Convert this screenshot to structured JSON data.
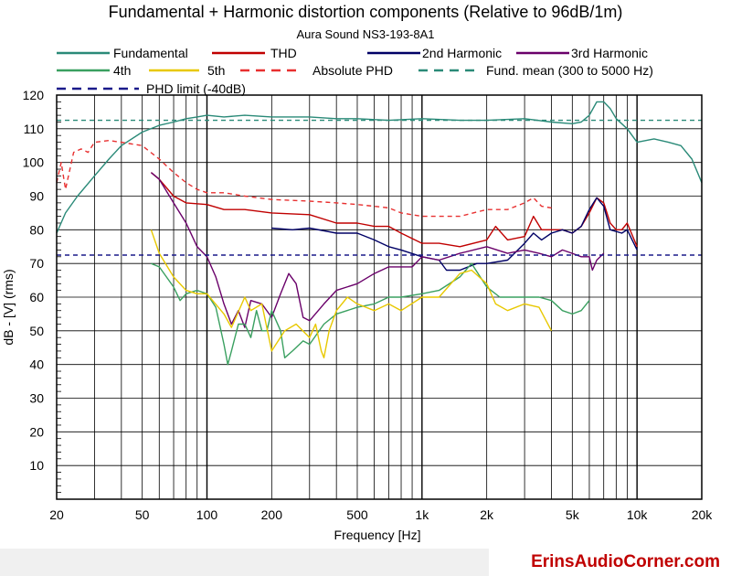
{
  "chart_data": {
    "type": "line",
    "title": "Fundamental + Harmonic distortion components (Relative to 96dB/1m)",
    "subtitle": "Aura Sound NS3-193-8A1",
    "xlabel": "Frequency [Hz]",
    "ylabel": "dB - [V]  (rms)",
    "xscale": "log",
    "xlim": [
      20,
      20000
    ],
    "ylim": [
      0,
      120
    ],
    "xticks": [
      20,
      50,
      100,
      200,
      500,
      1000,
      2000,
      5000,
      10000,
      20000
    ],
    "xtick_labels": [
      "20",
      "50",
      "100",
      "200",
      "500",
      "1k",
      "2k",
      "5k",
      "10k",
      "20k"
    ],
    "yticks": [
      10,
      20,
      30,
      40,
      50,
      60,
      70,
      80,
      90,
      100,
      110,
      120
    ],
    "grid": true,
    "legend_placement": "top",
    "series": [
      {
        "name": "Fundamental",
        "color": "#2a8a78",
        "dash": "solid",
        "points": [
          [
            20,
            79
          ],
          [
            22,
            85
          ],
          [
            25,
            90
          ],
          [
            30,
            96
          ],
          [
            35,
            101
          ],
          [
            40,
            105
          ],
          [
            50,
            109
          ],
          [
            60,
            111
          ],
          [
            70,
            112
          ],
          [
            80,
            113
          ],
          [
            90,
            113.5
          ],
          [
            100,
            114
          ],
          [
            120,
            113.5
          ],
          [
            150,
            114
          ],
          [
            200,
            113.5
          ],
          [
            300,
            113.5
          ],
          [
            400,
            113
          ],
          [
            500,
            113
          ],
          [
            700,
            112.5
          ],
          [
            1000,
            113
          ],
          [
            1500,
            112.5
          ],
          [
            2000,
            112.5
          ],
          [
            3000,
            113
          ],
          [
            4000,
            112
          ],
          [
            5000,
            111.5
          ],
          [
            5500,
            112
          ],
          [
            6000,
            114
          ],
          [
            6500,
            118
          ],
          [
            7000,
            118
          ],
          [
            7500,
            116
          ],
          [
            8000,
            113
          ],
          [
            9000,
            110
          ],
          [
            10000,
            106
          ],
          [
            12000,
            107
          ],
          [
            14000,
            106
          ],
          [
            16000,
            105
          ],
          [
            18000,
            101
          ],
          [
            20000,
            94
          ]
        ]
      },
      {
        "name": "THD",
        "color": "#c00000",
        "dash": "solid",
        "points": [
          [
            55,
            97
          ],
          [
            60,
            95
          ],
          [
            70,
            90
          ],
          [
            80,
            88
          ],
          [
            100,
            87.5
          ],
          [
            120,
            86
          ],
          [
            150,
            86
          ],
          [
            200,
            85
          ],
          [
            300,
            84.5
          ],
          [
            400,
            82
          ],
          [
            500,
            82
          ],
          [
            600,
            81
          ],
          [
            700,
            81
          ],
          [
            800,
            79
          ],
          [
            1000,
            76
          ],
          [
            1200,
            76
          ],
          [
            1500,
            75
          ],
          [
            2000,
            77
          ],
          [
            2200,
            81
          ],
          [
            2500,
            77
          ],
          [
            3000,
            78
          ],
          [
            3300,
            84
          ],
          [
            3600,
            80
          ],
          [
            4000,
            80
          ],
          [
            4500,
            80
          ],
          [
            5000,
            79
          ],
          [
            5500,
            81
          ],
          [
            6000,
            85
          ],
          [
            6500,
            89.5
          ],
          [
            7000,
            88
          ],
          [
            7500,
            82
          ],
          [
            8000,
            80
          ],
          [
            8500,
            80
          ],
          [
            9000,
            82
          ],
          [
            10000,
            75
          ]
        ]
      },
      {
        "name": "2nd Harmonic",
        "color": "#000066",
        "dash": "solid",
        "points": [
          [
            200,
            80.5
          ],
          [
            250,
            80
          ],
          [
            300,
            80.5
          ],
          [
            400,
            79
          ],
          [
            500,
            79
          ],
          [
            600,
            77
          ],
          [
            700,
            75
          ],
          [
            800,
            74
          ],
          [
            1000,
            72
          ],
          [
            1200,
            71
          ],
          [
            1300,
            68
          ],
          [
            1500,
            68
          ],
          [
            1800,
            70
          ],
          [
            2000,
            70
          ],
          [
            2500,
            71
          ],
          [
            3000,
            76
          ],
          [
            3300,
            79
          ],
          [
            3600,
            77
          ],
          [
            4000,
            79
          ],
          [
            4500,
            80
          ],
          [
            5000,
            79
          ],
          [
            5500,
            81
          ],
          [
            6000,
            86
          ],
          [
            6500,
            89.5
          ],
          [
            7000,
            87
          ],
          [
            7500,
            80
          ],
          [
            8000,
            79.5
          ],
          [
            8500,
            79
          ],
          [
            9000,
            80
          ],
          [
            10000,
            74
          ]
        ]
      },
      {
        "name": "3rd Harmonic",
        "color": "#6a006a",
        "dash": "solid",
        "points": [
          [
            55,
            97
          ],
          [
            60,
            95
          ],
          [
            70,
            88
          ],
          [
            80,
            82
          ],
          [
            90,
            75
          ],
          [
            100,
            72
          ],
          [
            110,
            66
          ],
          [
            120,
            58
          ],
          [
            130,
            52
          ],
          [
            140,
            56
          ],
          [
            150,
            51
          ],
          [
            160,
            59
          ],
          [
            180,
            58
          ],
          [
            200,
            54
          ],
          [
            220,
            61
          ],
          [
            240,
            67
          ],
          [
            260,
            64
          ],
          [
            280,
            54
          ],
          [
            300,
            53
          ],
          [
            350,
            58
          ],
          [
            400,
            62
          ],
          [
            500,
            64
          ],
          [
            600,
            67
          ],
          [
            700,
            69
          ],
          [
            800,
            69
          ],
          [
            900,
            69
          ],
          [
            1000,
            72
          ],
          [
            1200,
            71
          ],
          [
            1500,
            73
          ],
          [
            2000,
            75
          ],
          [
            2500,
            73
          ],
          [
            3000,
            74
          ],
          [
            3500,
            73
          ],
          [
            4000,
            72
          ],
          [
            4500,
            74
          ],
          [
            5000,
            73
          ],
          [
            5500,
            72
          ],
          [
            6000,
            72
          ],
          [
            6200,
            68
          ],
          [
            6500,
            71
          ],
          [
            7000,
            73
          ]
        ]
      },
      {
        "name": "4th",
        "color": "#3aa060",
        "dash": "solid",
        "points": [
          [
            55,
            70
          ],
          [
            60,
            69
          ],
          [
            70,
            63
          ],
          [
            75,
            59
          ],
          [
            80,
            61
          ],
          [
            90,
            62
          ],
          [
            100,
            61
          ],
          [
            110,
            57
          ],
          [
            120,
            46
          ],
          [
            125,
            40
          ],
          [
            130,
            44
          ],
          [
            140,
            52
          ],
          [
            150,
            52
          ],
          [
            160,
            48
          ],
          [
            170,
            56
          ],
          [
            180,
            50
          ],
          [
            190,
            50
          ],
          [
            200,
            56
          ],
          [
            220,
            50
          ],
          [
            230,
            42
          ],
          [
            250,
            44
          ],
          [
            280,
            47
          ],
          [
            300,
            46
          ],
          [
            350,
            52
          ],
          [
            400,
            55
          ],
          [
            500,
            57
          ],
          [
            600,
            58
          ],
          [
            700,
            60
          ],
          [
            800,
            60
          ],
          [
            1000,
            61
          ],
          [
            1200,
            62
          ],
          [
            1500,
            66
          ],
          [
            1700,
            70
          ],
          [
            2000,
            63
          ],
          [
            2300,
            60
          ],
          [
            3000,
            60
          ],
          [
            3500,
            60
          ],
          [
            4000,
            59
          ],
          [
            4500,
            56
          ],
          [
            5000,
            55
          ],
          [
            5500,
            56
          ],
          [
            6000,
            59
          ]
        ]
      },
      {
        "name": "5th",
        "color": "#e8c800",
        "dash": "solid",
        "points": [
          [
            55,
            80
          ],
          [
            60,
            73
          ],
          [
            70,
            66
          ],
          [
            80,
            62
          ],
          [
            90,
            61
          ],
          [
            100,
            61
          ],
          [
            120,
            55
          ],
          [
            130,
            51
          ],
          [
            150,
            60
          ],
          [
            160,
            56
          ],
          [
            180,
            58
          ],
          [
            200,
            44
          ],
          [
            230,
            50
          ],
          [
            260,
            52
          ],
          [
            300,
            48
          ],
          [
            320,
            52
          ],
          [
            340,
            44
          ],
          [
            350,
            42
          ],
          [
            370,
            50
          ],
          [
            400,
            56
          ],
          [
            450,
            60
          ],
          [
            500,
            58
          ],
          [
            600,
            56
          ],
          [
            700,
            58
          ],
          [
            800,
            56
          ],
          [
            1000,
            60
          ],
          [
            1200,
            60
          ],
          [
            1500,
            67
          ],
          [
            1700,
            68
          ],
          [
            2000,
            64
          ],
          [
            2200,
            58
          ],
          [
            2500,
            56
          ],
          [
            3000,
            58
          ],
          [
            3500,
            57
          ],
          [
            4000,
            50
          ]
        ]
      },
      {
        "name": "Absolute PHD",
        "color": "#e83030",
        "dash": "dashed",
        "points": [
          [
            20,
            94
          ],
          [
            21,
            100
          ],
          [
            22,
            92
          ],
          [
            24,
            103
          ],
          [
            26,
            104
          ],
          [
            28,
            103
          ],
          [
            30,
            106
          ],
          [
            35,
            106.5
          ],
          [
            40,
            106
          ],
          [
            50,
            105
          ],
          [
            60,
            101
          ],
          [
            70,
            97
          ],
          [
            80,
            94
          ],
          [
            90,
            92
          ],
          [
            100,
            91
          ],
          [
            120,
            91
          ],
          [
            150,
            90
          ],
          [
            200,
            89
          ],
          [
            300,
            88.5
          ],
          [
            400,
            88
          ],
          [
            500,
            87.5
          ],
          [
            600,
            87
          ],
          [
            700,
            86.5
          ],
          [
            800,
            85
          ],
          [
            1000,
            84
          ],
          [
            1200,
            84
          ],
          [
            1500,
            84
          ],
          [
            2000,
            86
          ],
          [
            2500,
            86
          ],
          [
            3000,
            88
          ],
          [
            3300,
            89.5
          ],
          [
            3600,
            87
          ],
          [
            4000,
            86.5
          ]
        ]
      },
      {
        "name": "Fund. mean (300 to 5000 Hz)",
        "color": "#2a8a78",
        "dash": "dashed",
        "points": [
          [
            20,
            112.5
          ],
          [
            20000,
            112.5
          ]
        ]
      },
      {
        "name": "PHD limit (-40dB)",
        "color": "#1a1a8a",
        "dash": "dashed",
        "points": [
          [
            20,
            72.5
          ],
          [
            20000,
            72.5
          ]
        ]
      }
    ]
  },
  "brand": {
    "text": "ErinsAudioCorner.com"
  }
}
